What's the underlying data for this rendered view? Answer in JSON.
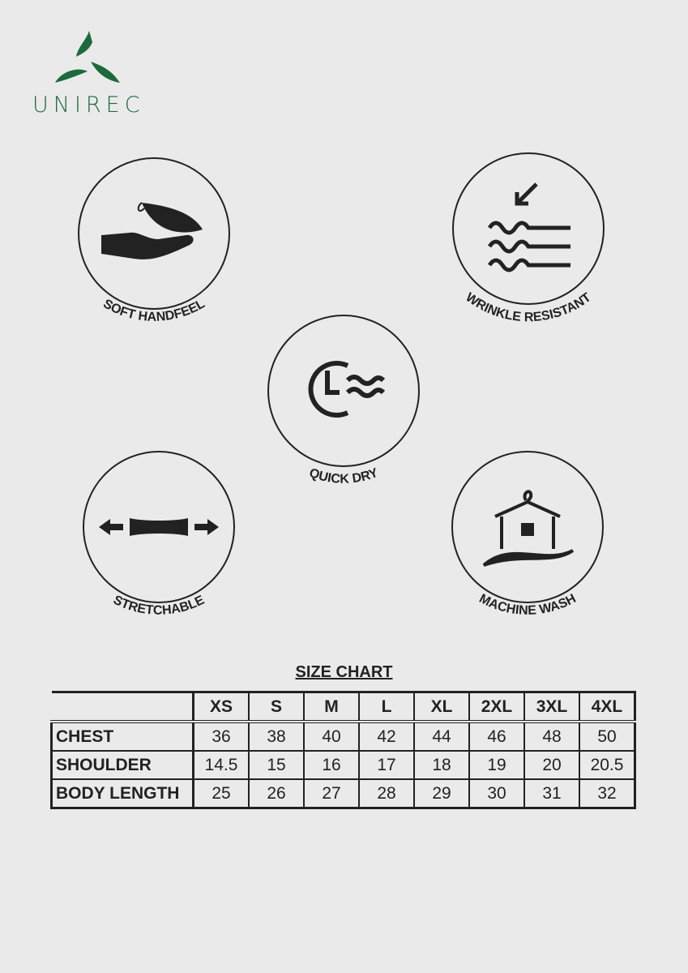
{
  "brand": {
    "name": "UNIREC",
    "color": "#1b6b3c"
  },
  "features": [
    {
      "label": "SOFT HANDFEEL",
      "icon": "hand-feather-icon"
    },
    {
      "label": "WRINKLE RESISTANT",
      "icon": "wrinkle-waves-icon"
    },
    {
      "label": "QUICK DRY",
      "icon": "clock-wind-icon"
    },
    {
      "label": "STRETCHABLE",
      "icon": "stretch-arrows-icon"
    },
    {
      "label": "MACHINE WASH",
      "icon": "hanger-house-icon"
    }
  ],
  "size_chart": {
    "title": "SIZE CHART",
    "sizes": [
      "XS",
      "S",
      "M",
      "L",
      "XL",
      "2XL",
      "3XL",
      "4XL"
    ],
    "rows": [
      {
        "label": "CHEST",
        "values": [
          "36",
          "38",
          "40",
          "42",
          "44",
          "46",
          "48",
          "50"
        ]
      },
      {
        "label": "SHOULDER",
        "values": [
          "14.5",
          "15",
          "16",
          "17",
          "18",
          "19",
          "20",
          "20.5"
        ]
      },
      {
        "label": "BODY LENGTH",
        "values": [
          "25",
          "26",
          "27",
          "28",
          "29",
          "30",
          "31",
          "32"
        ]
      }
    ]
  }
}
